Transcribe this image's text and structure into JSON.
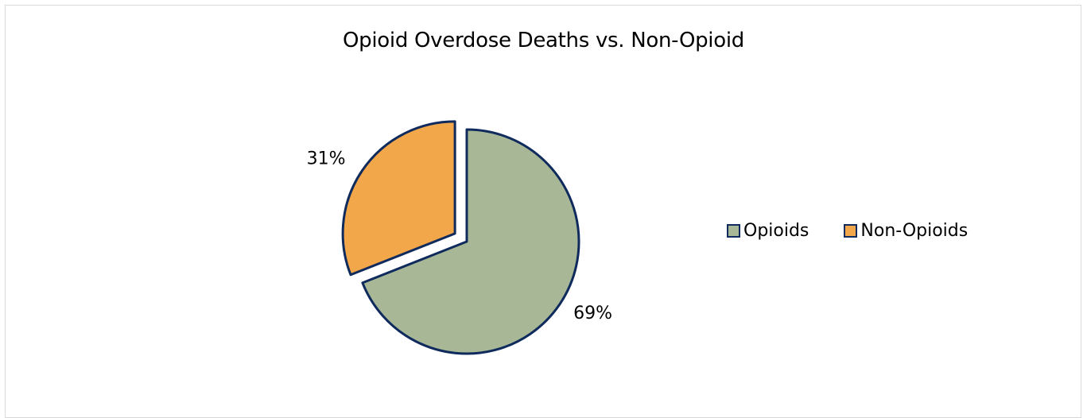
{
  "chart_data": {
    "type": "pie",
    "title": "Opioid Overdose Deaths vs. Non-Opioid",
    "slices": [
      {
        "name": "Opioids",
        "value": 69,
        "label": "69%",
        "color": "#a8b896",
        "exploded": false
      },
      {
        "name": "Non-Opioids",
        "value": 31,
        "label": "31%",
        "color": "#f2a74b",
        "exploded": true
      }
    ],
    "slice_border_color": "#0f2a5c",
    "legend": {
      "position": "right",
      "items": [
        "Opioids",
        "Non-Opioids"
      ]
    }
  }
}
